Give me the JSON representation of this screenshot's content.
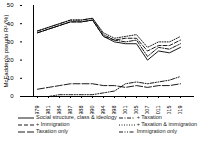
{
  "chart_data": {
    "type": "line",
    "y_label": "McFadden's pseudo R² (%)",
    "x": [
      1979,
      1981,
      1984,
      1987,
      1988,
      1990,
      1994,
      1998,
      2001,
      2005,
      2007,
      2011,
      2015,
      2019
    ],
    "ylim": [
      0,
      50
    ],
    "yticks": [
      0,
      10,
      20,
      30,
      40,
      50
    ],
    "legend": "bottom",
    "series": [
      {
        "name": "Social structure, class & ideology",
        "color": "#000000",
        "line_style": "solid",
        "values": [
          35,
          37,
          39,
          41,
          41,
          42,
          33,
          30,
          29,
          29,
          20,
          25,
          24,
          27
        ]
      },
      {
        "name": "+ Taxation",
        "color": "#000000",
        "line_style": "dashdot",
        "values": [
          36,
          38,
          40,
          42,
          42,
          43,
          34,
          31,
          30,
          31,
          22,
          27,
          26,
          29
        ]
      },
      {
        "name": "+ Immigration",
        "color": "#000000",
        "line_style": "dashed",
        "values": [
          35,
          37,
          39,
          41,
          41,
          42,
          33,
          31,
          32,
          32,
          25,
          28,
          28,
          31
        ]
      },
      {
        "name": "+ Taxation & immigration",
        "color": "#000000",
        "line_style": "dotted",
        "values": [
          36,
          38,
          40,
          42,
          42,
          43,
          35,
          32,
          33,
          34,
          27,
          30,
          30,
          33
        ]
      },
      {
        "name": "Taxation only",
        "color": "#000000",
        "line_style": "longdash",
        "values": [
          4,
          5,
          6,
          7,
          7,
          7,
          6,
          6,
          5,
          6,
          5,
          6,
          6,
          7
        ]
      },
      {
        "name": "Immigration only",
        "color": "#000000",
        "line_style": "dashdotdot",
        "values": [
          0,
          0,
          1,
          1,
          1,
          1,
          2,
          3,
          7,
          8,
          7,
          8,
          9,
          11
        ]
      }
    ]
  }
}
